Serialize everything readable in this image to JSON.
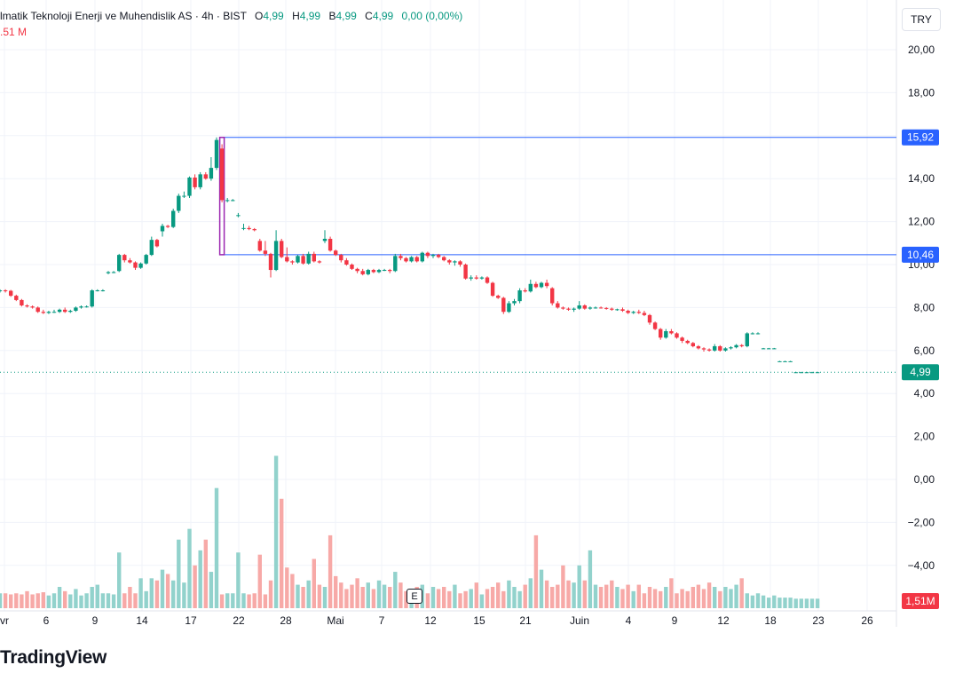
{
  "legend": {
    "title": "lmatik Teknoloji Enerji ve Muhendislik AS · 4h · BIST",
    "o_label": "O",
    "o_value": "4,99",
    "h_label": "H",
    "h_value": "4,99",
    "l_label": "B",
    "l_value": "4,99",
    "c_label": "C",
    "c_value": "4,99",
    "change": "0,00 (0,00%)",
    "volume": ".51 M"
  },
  "currency_button": "TRY",
  "event_marker": "E",
  "branding": "TradingView",
  "colors": {
    "up": "#089981",
    "down": "#f23645",
    "up_volume": "#92d2cc",
    "down_volume": "#f7a9a7",
    "hline": "#2962ff",
    "highlight": "#9c27b0",
    "last_price": "#089981",
    "grid": "#f0f3fa"
  },
  "chart_data": {
    "type": "candlestick",
    "y_axis": {
      "range": [
        -5.6,
        21.0
      ],
      "ticks": [
        "20,00",
        "18,00",
        "16,00",
        "14,00",
        "12,00",
        "10,00",
        "8,00",
        "6,00",
        "4,00",
        "2,00",
        "0,00",
        "−2,00",
        "−4,00"
      ]
    },
    "x_axis": {
      "ticks": [
        "vr",
        "6",
        "9",
        "14",
        "17",
        "22",
        "28",
        "Mai",
        "7",
        "12",
        "15",
        "21",
        "Juin",
        "4",
        "9",
        "12",
        "18",
        "23",
        "26"
      ]
    },
    "price_tags": [
      {
        "label": "15,92",
        "value": 15.92
      },
      {
        "label": "10,46",
        "value": 10.46
      }
    ],
    "last_price": {
      "label": "4,99",
      "value": 4.99
    },
    "volume_tag": "1,51M",
    "horizontal_lines": [
      15.92,
      10.46
    ],
    "highlight_box": {
      "start_index": 41,
      "end_index": 41,
      "low": 10.46,
      "high": 15.92
    },
    "ohlc_fields": [
      "open",
      "high",
      "low",
      "close"
    ],
    "ohlc": [
      [
        8.8,
        8.85,
        8.7,
        8.8
      ],
      [
        8.8,
        8.85,
        8.7,
        8.78
      ],
      [
        8.78,
        8.82,
        8.5,
        8.55
      ],
      [
        8.55,
        8.6,
        8.3,
        8.35
      ],
      [
        8.35,
        8.4,
        8.05,
        8.1
      ],
      [
        8.1,
        8.15,
        8.0,
        8.05
      ],
      [
        8.05,
        8.1,
        7.95,
        8.0
      ],
      [
        8.0,
        8.05,
        7.75,
        7.8
      ],
      [
        7.8,
        7.9,
        7.7,
        7.75
      ],
      [
        7.75,
        7.85,
        7.7,
        7.8
      ],
      [
        7.8,
        7.9,
        7.75,
        7.8
      ],
      [
        7.8,
        7.95,
        7.75,
        7.9
      ],
      [
        7.9,
        8.0,
        7.75,
        7.8
      ],
      [
        7.8,
        7.9,
        7.75,
        7.85
      ],
      [
        7.85,
        8.05,
        7.8,
        8.0
      ],
      [
        8.0,
        8.1,
        7.95,
        8.05
      ],
      [
        8.05,
        8.1,
        8.0,
        8.05
      ],
      [
        8.05,
        8.85,
        8.0,
        8.8
      ],
      [
        8.8,
        8.85,
        8.75,
        8.8
      ],
      [
        8.8,
        8.85,
        8.75,
        8.8
      ],
      [
        9.6,
        9.7,
        9.55,
        9.65
      ],
      [
        9.65,
        9.7,
        9.6,
        9.65
      ],
      [
        9.7,
        10.5,
        9.65,
        10.45
      ],
      [
        10.45,
        10.5,
        10.1,
        10.2
      ],
      [
        10.2,
        10.3,
        10.05,
        10.1
      ],
      [
        10.1,
        10.15,
        9.75,
        9.85
      ],
      [
        9.85,
        10.1,
        9.8,
        10.05
      ],
      [
        10.05,
        10.5,
        10.0,
        10.45
      ],
      [
        10.45,
        11.3,
        10.4,
        11.15
      ],
      [
        11.15,
        11.2,
        10.8,
        10.85
      ],
      [
        11.55,
        11.9,
        11.3,
        11.8
      ],
      [
        11.8,
        11.85,
        11.7,
        11.75
      ],
      [
        11.75,
        12.6,
        11.7,
        12.5
      ],
      [
        12.5,
        13.3,
        12.4,
        13.2
      ],
      [
        13.2,
        13.4,
        13.1,
        13.2
      ],
      [
        13.2,
        14.1,
        13.1,
        14.05
      ],
      [
        14.05,
        14.2,
        13.5,
        13.6
      ],
      [
        13.6,
        14.3,
        13.5,
        14.2
      ],
      [
        14.2,
        14.3,
        13.95,
        14.0
      ],
      [
        14.0,
        15.0,
        13.9,
        14.5
      ],
      [
        14.5,
        15.92,
        14.4,
        15.8
      ],
      [
        15.4,
        15.6,
        12.9,
        13.0
      ],
      [
        13.0,
        13.1,
        12.9,
        13.0
      ],
      [
        13.0,
        13.05,
        12.95,
        13.0
      ],
      [
        12.3,
        12.4,
        12.2,
        12.3
      ],
      [
        11.7,
        11.9,
        11.6,
        11.7
      ],
      [
        11.7,
        11.8,
        11.6,
        11.65
      ],
      [
        11.65,
        11.7,
        11.55,
        11.6
      ],
      [
        11.1,
        11.2,
        10.6,
        10.65
      ],
      [
        10.65,
        11.1,
        10.4,
        10.5
      ],
      [
        10.5,
        10.55,
        9.4,
        9.75
      ],
      [
        9.75,
        11.6,
        9.7,
        11.1
      ],
      [
        11.1,
        11.2,
        10.3,
        10.35
      ],
      [
        10.35,
        10.8,
        10.1,
        10.15
      ],
      [
        10.15,
        10.2,
        10.0,
        10.1
      ],
      [
        10.1,
        10.45,
        10.05,
        10.4
      ],
      [
        10.4,
        10.5,
        10.0,
        10.05
      ],
      [
        10.05,
        10.6,
        10.0,
        10.5
      ],
      [
        10.5,
        10.6,
        10.1,
        10.15
      ],
      [
        10.15,
        10.2,
        10.05,
        10.1
      ],
      [
        11.1,
        11.6,
        11.0,
        11.2
      ],
      [
        11.2,
        11.3,
        10.6,
        10.65
      ],
      [
        10.65,
        10.7,
        10.4,
        10.45
      ],
      [
        10.45,
        10.5,
        10.1,
        10.2
      ],
      [
        10.2,
        10.3,
        9.95,
        10.0
      ],
      [
        10.0,
        10.05,
        9.75,
        9.8
      ],
      [
        9.8,
        9.85,
        9.6,
        9.7
      ],
      [
        9.7,
        9.8,
        9.5,
        9.55
      ],
      [
        9.55,
        9.8,
        9.5,
        9.75
      ],
      [
        9.75,
        9.8,
        9.6,
        9.65
      ],
      [
        9.65,
        9.8,
        9.6,
        9.75
      ],
      [
        9.75,
        9.8,
        9.7,
        9.75
      ],
      [
        9.75,
        9.8,
        9.6,
        9.7
      ],
      [
        9.7,
        10.5,
        9.65,
        10.4
      ],
      [
        10.4,
        10.5,
        10.2,
        10.3
      ],
      [
        10.3,
        10.35,
        10.1,
        10.15
      ],
      [
        10.15,
        10.4,
        10.1,
        10.35
      ],
      [
        10.35,
        10.4,
        10.1,
        10.15
      ],
      [
        10.15,
        10.6,
        10.1,
        10.55
      ],
      [
        10.55,
        10.6,
        10.3,
        10.4
      ],
      [
        10.4,
        10.5,
        10.3,
        10.45
      ],
      [
        10.45,
        10.5,
        10.3,
        10.35
      ],
      [
        10.35,
        10.4,
        10.15,
        10.2
      ],
      [
        10.2,
        10.25,
        10.0,
        10.1
      ],
      [
        10.1,
        10.2,
        9.95,
        10.15
      ],
      [
        10.15,
        10.2,
        9.9,
        10.0
      ],
      [
        10.0,
        10.05,
        9.3,
        9.35
      ],
      [
        9.35,
        9.5,
        9.25,
        9.4
      ],
      [
        9.4,
        9.5,
        9.3,
        9.35
      ],
      [
        9.35,
        9.45,
        9.3,
        9.4
      ],
      [
        9.4,
        9.45,
        9.1,
        9.15
      ],
      [
        9.15,
        9.2,
        8.5,
        8.55
      ],
      [
        8.55,
        8.6,
        8.4,
        8.45
      ],
      [
        8.45,
        8.5,
        7.7,
        7.8
      ],
      [
        7.8,
        8.3,
        7.75,
        8.2
      ],
      [
        8.2,
        8.4,
        8.1,
        8.3
      ],
      [
        8.3,
        8.9,
        8.2,
        8.8
      ],
      [
        8.8,
        8.9,
        8.7,
        8.75
      ],
      [
        8.75,
        9.3,
        8.7,
        9.1
      ],
      [
        9.1,
        9.2,
        8.9,
        8.95
      ],
      [
        8.95,
        9.2,
        8.9,
        9.15
      ],
      [
        9.15,
        9.3,
        8.9,
        9.0
      ],
      [
        8.9,
        8.95,
        8.1,
        8.2
      ],
      [
        8.2,
        8.3,
        7.95,
        8.0
      ],
      [
        8.0,
        8.05,
        7.9,
        7.95
      ],
      [
        7.95,
        8.0,
        7.85,
        7.9
      ],
      [
        7.9,
        8.0,
        7.8,
        7.95
      ],
      [
        7.95,
        8.3,
        7.9,
        8.1
      ],
      [
        8.1,
        8.15,
        7.9,
        7.95
      ],
      [
        7.95,
        8.05,
        7.9,
        8.0
      ],
      [
        8.0,
        8.05,
        7.95,
        8.0
      ],
      [
        8.0,
        8.05,
        7.95,
        7.98
      ],
      [
        7.98,
        8.02,
        7.9,
        7.95
      ],
      [
        7.95,
        8.0,
        7.85,
        7.9
      ],
      [
        7.9,
        7.95,
        7.85,
        7.92
      ],
      [
        7.92,
        8.0,
        7.8,
        7.85
      ],
      [
        7.85,
        7.9,
        7.7,
        7.75
      ],
      [
        7.75,
        7.85,
        7.7,
        7.8
      ],
      [
        7.8,
        7.9,
        7.7,
        7.75
      ],
      [
        7.75,
        7.85,
        7.6,
        7.65
      ],
      [
        7.65,
        7.7,
        7.2,
        7.3
      ],
      [
        7.3,
        7.35,
        6.95,
        7.0
      ],
      [
        7.0,
        7.05,
        6.5,
        6.6
      ],
      [
        6.6,
        7.0,
        6.55,
        6.9
      ],
      [
        6.9,
        7.0,
        6.75,
        6.8
      ],
      [
        6.8,
        6.85,
        6.55,
        6.6
      ],
      [
        6.6,
        6.65,
        6.35,
        6.45
      ],
      [
        6.45,
        6.5,
        6.3,
        6.35
      ],
      [
        6.35,
        6.4,
        6.15,
        6.2
      ],
      [
        6.2,
        6.25,
        6.05,
        6.1
      ],
      [
        6.1,
        6.15,
        5.95,
        6.05
      ],
      [
        6.05,
        6.1,
        5.95,
        6.0
      ],
      [
        6.0,
        6.3,
        5.95,
        6.2
      ],
      [
        6.2,
        6.25,
        5.95,
        6.0
      ],
      [
        6.0,
        6.15,
        5.95,
        6.1
      ],
      [
        6.1,
        6.2,
        6.05,
        6.15
      ],
      [
        6.15,
        6.3,
        6.1,
        6.25
      ],
      [
        6.25,
        6.3,
        6.15,
        6.2
      ],
      [
        6.2,
        6.85,
        6.15,
        6.8
      ],
      [
        6.8,
        6.85,
        6.75,
        6.8
      ],
      [
        6.8,
        6.85,
        6.75,
        6.8
      ],
      [
        6.1,
        6.12,
        6.08,
        6.1
      ],
      [
        6.1,
        6.12,
        6.08,
        6.1
      ],
      [
        6.1,
        6.12,
        6.08,
        6.1
      ],
      [
        5.5,
        5.52,
        5.48,
        5.5
      ],
      [
        5.5,
        5.52,
        5.48,
        5.5
      ],
      [
        5.5,
        5.52,
        5.48,
        5.5
      ],
      [
        4.99,
        5.01,
        4.97,
        4.99
      ],
      [
        4.99,
        5.01,
        4.97,
        4.99
      ],
      [
        4.99,
        5.01,
        4.97,
        4.99
      ],
      [
        4.99,
        5.01,
        4.97,
        4.99
      ],
      [
        4.99,
        5.01,
        4.97,
        4.99
      ]
    ],
    "volume": [
      -5.3,
      -5.3,
      -5.35,
      -5.3,
      -5.35,
      -5.2,
      -5.35,
      -5.3,
      -5.25,
      -5.4,
      -5.3,
      -5.0,
      -5.2,
      -5.35,
      -5.1,
      -5.4,
      -5.3,
      -5.0,
      -4.9,
      -5.3,
      -5.3,
      -5.35,
      -3.4,
      -5.3,
      -5.0,
      -5.3,
      -4.6,
      -5.2,
      -4.6,
      -4.7,
      -4.2,
      -4.4,
      -4.7,
      -2.8,
      -4.8,
      -2.3,
      -4.0,
      -3.3,
      -2.8,
      -4.3,
      -0.4,
      -5.35,
      -5.3,
      -5.3,
      -3.4,
      -5.3,
      -5.35,
      -5.3,
      -3.5,
      -5.35,
      -4.7,
      1.1,
      -0.9,
      -4.1,
      -4.4,
      -4.9,
      -5.0,
      -4.7,
      -3.7,
      -4.9,
      -5.0,
      -2.6,
      -4.5,
      -4.8,
      -5.1,
      -4.9,
      -4.6,
      -5.0,
      -4.8,
      -5.1,
      -4.7,
      -4.9,
      -5.0,
      -4.3,
      -4.8,
      -5.2,
      -5.1,
      -5.0,
      -4.9,
      -5.3,
      -5.0,
      -5.1,
      -5.0,
      -5.2,
      -4.9,
      -5.3,
      -5.2,
      -5.1,
      -4.8,
      -5.35,
      -5.1,
      -5.0,
      -4.8,
      -5.2,
      -4.7,
      -5.0,
      -5.2,
      -4.9,
      -4.6,
      -2.6,
      -4.2,
      -4.7,
      -5.0,
      -4.9,
      -4.0,
      -4.7,
      -4.8,
      -4.0,
      -4.7,
      -3.3,
      -4.9,
      -5.0,
      -4.9,
      -4.7,
      -5.0,
      -5.1,
      -4.9,
      -5.2,
      -4.9,
      -5.3,
      -5.0,
      -5.1,
      -5.2,
      -5.0,
      -4.6,
      -5.3,
      -5.1,
      -5.2,
      -5.0,
      -4.9,
      -5.1,
      -4.8,
      -5.0,
      -5.2,
      -5.0,
      -5.1,
      -4.9,
      -4.6,
      -5.3,
      -5.4,
      -5.3,
      -5.4,
      -5.5,
      -5.4,
      -5.5,
      -5.5,
      -5.5,
      -5.55,
      -5.55,
      -5.55,
      -5.55,
      -5.55
    ]
  }
}
